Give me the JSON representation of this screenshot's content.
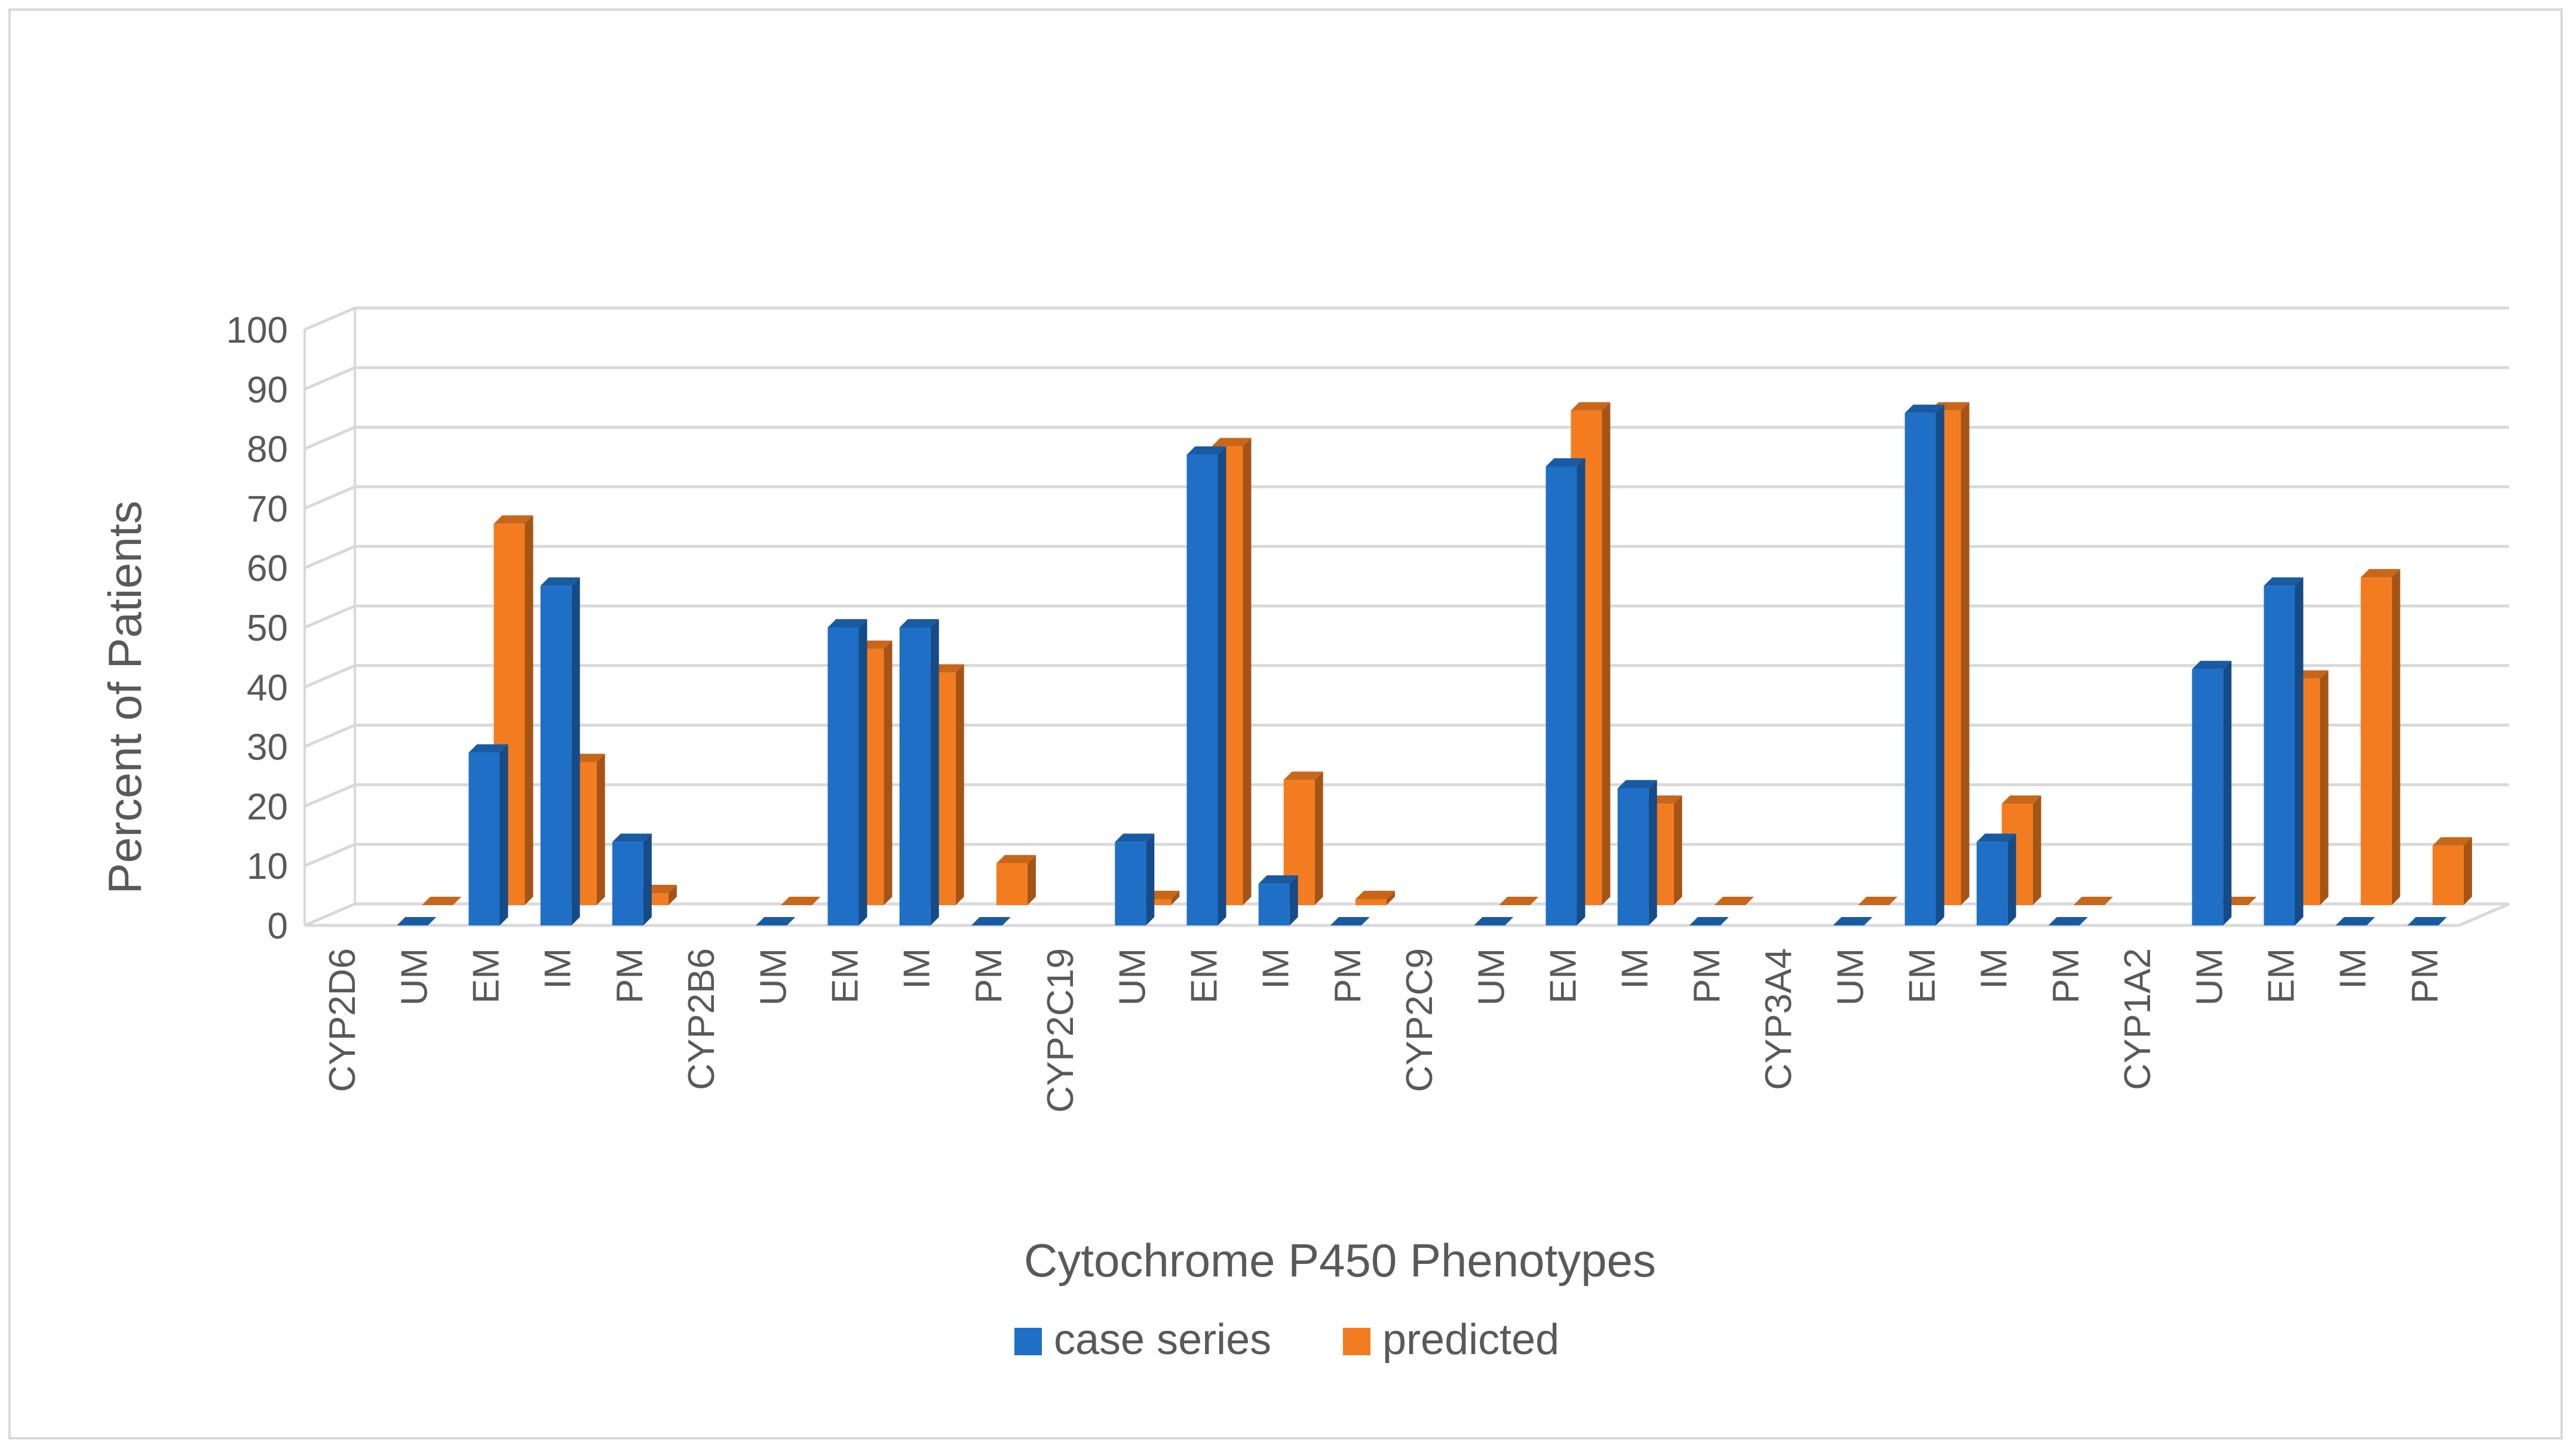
{
  "chart_data": {
    "type": "bar",
    "title": "",
    "xlabel": "Cytochrome P450 Phenotypes",
    "ylabel": "Percent of Patients",
    "ylim": [
      0,
      100
    ],
    "yticks": [
      0,
      10,
      20,
      30,
      40,
      50,
      60,
      70,
      80,
      90,
      100
    ],
    "grid": true,
    "legend_position": "bottom",
    "categories": [
      "CYP2D6",
      "UM",
      "EM",
      "IM",
      "PM",
      "CYP2B6",
      "UM",
      "EM",
      "IM",
      "PM",
      "CYP2C19",
      "UM",
      "EM",
      "IM",
      "PM",
      "CYP2C9",
      "UM",
      "EM",
      "IM",
      "PM",
      "CYP3A4",
      "UM",
      "EM",
      "IM",
      "PM",
      "CYP1A2",
      "UM",
      "EM",
      "IM",
      "PM"
    ],
    "series": [
      {
        "name": "case series",
        "color": "#1f6fc6",
        "values": [
          null,
          0,
          29,
          57,
          14,
          null,
          0,
          50,
          50,
          0,
          null,
          14,
          79,
          7,
          0,
          null,
          0,
          77,
          23,
          0,
          null,
          0,
          86,
          14,
          0,
          null,
          43,
          57,
          0,
          0
        ]
      },
      {
        "name": "predicted",
        "color": "#f47c20",
        "values": [
          null,
          0,
          64,
          24,
          2,
          null,
          0,
          43,
          39,
          7,
          null,
          1,
          77,
          21,
          1,
          null,
          0,
          83,
          17,
          0,
          null,
          0,
          83,
          17,
          0,
          null,
          0,
          38,
          55,
          10
        ]
      }
    ]
  }
}
